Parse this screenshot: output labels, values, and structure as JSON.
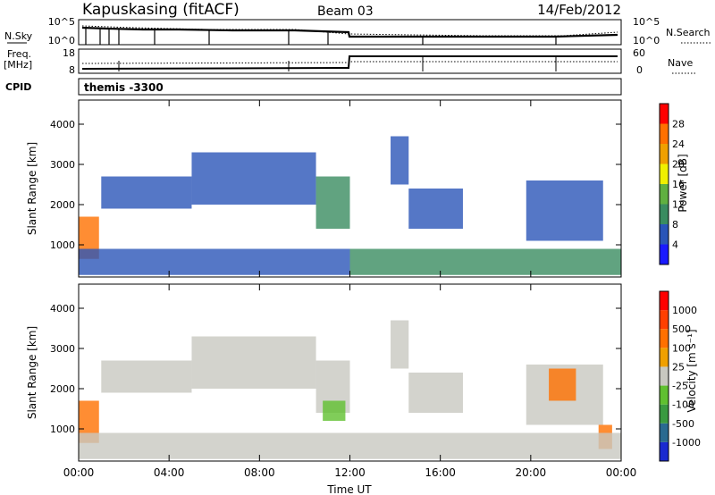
{
  "header": {
    "station": "Kapuskasing (fitACF)",
    "beam": "Beam 03",
    "date": "14/Feb/2012"
  },
  "noise_panel": {
    "left_label": "N.Sky",
    "right_label": "N.Search",
    "left_ticks": [
      "10^5",
      "10^0"
    ],
    "right_ticks": [
      "10^5",
      "10^0"
    ]
  },
  "freq_panel": {
    "left_label_1": "Freq.",
    "left_label_2": "[MHz]",
    "right_label": "Nave",
    "left_ticks": [
      "18",
      "8"
    ],
    "right_ticks": [
      "60",
      "0"
    ]
  },
  "cpid_panel": {
    "label": "CPID",
    "value": "themis -3300"
  },
  "x_axis": {
    "label": "Time UT",
    "ticks": [
      "00:00",
      "04:00",
      "08:00",
      "12:00",
      "16:00",
      "20:00",
      "00:00"
    ]
  },
  "chart_data": [
    {
      "type": "heatmap",
      "title": "Power",
      "ylabel": "Slant Range [km]",
      "xlabel": "Time UT",
      "xlim": [
        0,
        24
      ],
      "ylim": [
        200,
        4600
      ],
      "y_ticks": [
        1000,
        2000,
        3000,
        4000
      ],
      "colorbar": {
        "label": "Power [dB]",
        "ticks": [
          4,
          8,
          12,
          16,
          20,
          24,
          28
        ],
        "colors": [
          "#1a1aff",
          "#2a55b8",
          "#3a8c60",
          "#60b040",
          "#f0f000",
          "#f0a000",
          "#ff7000",
          "#ff0000"
        ]
      },
      "regions": [
        {
          "t": [
            0.0,
            0.9
          ],
          "r": [
            650,
            1700
          ],
          "color": "#ff7000"
        },
        {
          "t": [
            1.0,
            5.0
          ],
          "r": [
            1900,
            2700
          ],
          "color": "#2a55b8"
        },
        {
          "t": [
            5.0,
            10.5
          ],
          "r": [
            2000,
            3300
          ],
          "color": "#2a55b8"
        },
        {
          "t": [
            10.5,
            12.0
          ],
          "r": [
            1400,
            2700
          ],
          "color": "#3a8c60"
        },
        {
          "t": [
            13.8,
            14.6
          ],
          "r": [
            2500,
            3700
          ],
          "color": "#2a55b8"
        },
        {
          "t": [
            14.6,
            17.0
          ],
          "r": [
            1400,
            2400
          ],
          "color": "#2a55b8"
        },
        {
          "t": [
            19.8,
            23.2
          ],
          "r": [
            1100,
            2600
          ],
          "color": "#2a55b8"
        },
        {
          "t": [
            12.0,
            24.0
          ],
          "r": [
            250,
            900
          ],
          "color": "#3a8c60"
        },
        {
          "t": [
            0.0,
            12.0
          ],
          "r": [
            250,
            900
          ],
          "color": "#2a55b8"
        }
      ]
    },
    {
      "type": "heatmap",
      "title": "Velocity",
      "ylabel": "Slant Range [km]",
      "xlabel": "Time UT",
      "xlim": [
        0,
        24
      ],
      "ylim": [
        200,
        4600
      ],
      "y_ticks": [
        1000,
        2000,
        3000,
        4000
      ],
      "colorbar": {
        "label": "Velocity [m s⁻¹]",
        "ticks": [
          1000,
          500,
          100,
          25,
          -25,
          -100,
          -500,
          -1000
        ],
        "colors": [
          "#1a2ad0",
          "#2a6a90",
          "#3a9a40",
          "#60c030",
          "#c8c8c0",
          "#f0a000",
          "#ff7000",
          "#ff4000",
          "#ff0000"
        ]
      },
      "regions": [
        {
          "t": [
            0.0,
            0.9
          ],
          "r": [
            650,
            1700
          ],
          "color": "#ff7000"
        },
        {
          "t": [
            1.0,
            5.0
          ],
          "r": [
            1900,
            2700
          ],
          "color": "#c8c8c0"
        },
        {
          "t": [
            5.0,
            10.5
          ],
          "r": [
            2000,
            3300
          ],
          "color": "#c8c8c0"
        },
        {
          "t": [
            10.5,
            12.0
          ],
          "r": [
            1400,
            2700
          ],
          "color": "#c8c8c0"
        },
        {
          "t": [
            10.8,
            11.8
          ],
          "r": [
            1200,
            1700
          ],
          "color": "#60c030"
        },
        {
          "t": [
            13.8,
            14.6
          ],
          "r": [
            2500,
            3700
          ],
          "color": "#c8c8c0"
        },
        {
          "t": [
            14.6,
            17.0
          ],
          "r": [
            1400,
            2400
          ],
          "color": "#c8c8c0"
        },
        {
          "t": [
            19.8,
            23.2
          ],
          "r": [
            1100,
            2600
          ],
          "color": "#c8c8c0"
        },
        {
          "t": [
            20.8,
            22.0
          ],
          "r": [
            1700,
            2500
          ],
          "color": "#ff7000"
        },
        {
          "t": [
            23.0,
            23.6
          ],
          "r": [
            500,
            1100
          ],
          "color": "#ff7000"
        },
        {
          "t": [
            12.0,
            24.0
          ],
          "r": [
            250,
            900
          ],
          "color": "#c8c8c0"
        },
        {
          "t": [
            0.0,
            12.0
          ],
          "r": [
            250,
            900
          ],
          "color": "#c8c8c0"
        }
      ]
    }
  ]
}
